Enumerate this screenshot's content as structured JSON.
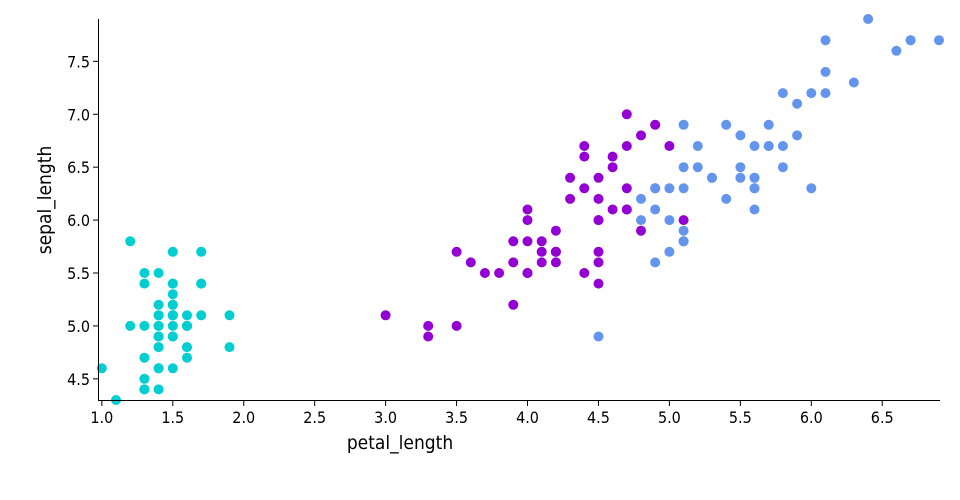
{
  "chart_data": {
    "type": "scatter",
    "xlabel": "petal_length",
    "ylabel": "sepal_length",
    "xlim": [
      0.98,
      6.9
    ],
    "ylim": [
      4.3,
      7.9
    ],
    "x_ticks": [
      "1.0",
      "1.5",
      "2.0",
      "2.5",
      "3.0",
      "3.5",
      "4.0",
      "4.5",
      "5.0",
      "5.5",
      "6.0",
      "6.5"
    ],
    "y_ticks": [
      "4.5",
      "5.0",
      "5.5",
      "6.0",
      "6.5",
      "7.0",
      "7.5"
    ],
    "grid": false,
    "series": [
      {
        "color": "#00CED1",
        "points": [
          [
            1.4,
            5.1
          ],
          [
            1.4,
            4.9
          ],
          [
            1.3,
            4.7
          ],
          [
            1.5,
            4.6
          ],
          [
            1.4,
            5.0
          ],
          [
            1.7,
            5.4
          ],
          [
            1.4,
            4.6
          ],
          [
            1.5,
            5.0
          ],
          [
            1.4,
            4.4
          ],
          [
            1.5,
            4.9
          ],
          [
            1.5,
            5.4
          ],
          [
            1.6,
            4.8
          ],
          [
            1.4,
            4.8
          ],
          [
            1.1,
            4.3
          ],
          [
            1.2,
            5.8
          ],
          [
            1.5,
            5.7
          ],
          [
            1.3,
            5.4
          ],
          [
            1.4,
            5.1
          ],
          [
            1.7,
            5.7
          ],
          [
            1.5,
            5.1
          ],
          [
            1.7,
            5.4
          ],
          [
            1.5,
            5.1
          ],
          [
            1.0,
            4.6
          ],
          [
            1.7,
            5.1
          ],
          [
            1.9,
            4.8
          ],
          [
            1.6,
            5.0
          ],
          [
            1.6,
            5.0
          ],
          [
            1.5,
            5.2
          ],
          [
            1.4,
            5.2
          ],
          [
            1.6,
            4.7
          ],
          [
            1.6,
            4.8
          ],
          [
            1.5,
            5.4
          ],
          [
            1.5,
            5.2
          ],
          [
            1.4,
            5.5
          ],
          [
            1.5,
            4.9
          ],
          [
            1.2,
            5.0
          ],
          [
            1.3,
            5.5
          ],
          [
            1.4,
            4.9
          ],
          [
            1.3,
            4.4
          ],
          [
            1.5,
            5.1
          ],
          [
            1.3,
            5.0
          ],
          [
            1.3,
            4.5
          ],
          [
            1.3,
            4.4
          ],
          [
            1.6,
            5.0
          ],
          [
            1.9,
            5.1
          ],
          [
            1.4,
            4.8
          ],
          [
            1.6,
            5.1
          ],
          [
            1.4,
            4.6
          ],
          [
            1.5,
            5.3
          ],
          [
            1.4,
            5.0
          ]
        ]
      },
      {
        "color": "#9400D3",
        "points": [
          [
            4.7,
            7.0
          ],
          [
            4.5,
            6.4
          ],
          [
            4.9,
            6.9
          ],
          [
            4.0,
            5.5
          ],
          [
            4.6,
            6.5
          ],
          [
            4.5,
            5.7
          ],
          [
            4.7,
            6.3
          ],
          [
            3.3,
            4.9
          ],
          [
            4.6,
            6.6
          ],
          [
            3.9,
            5.2
          ],
          [
            3.5,
            5.0
          ],
          [
            4.2,
            5.9
          ],
          [
            4.0,
            6.0
          ],
          [
            4.7,
            6.1
          ],
          [
            3.6,
            5.6
          ],
          [
            4.4,
            6.7
          ],
          [
            4.5,
            5.6
          ],
          [
            4.1,
            5.8
          ],
          [
            4.5,
            6.2
          ],
          [
            3.9,
            5.6
          ],
          [
            4.8,
            5.9
          ],
          [
            4.0,
            6.1
          ],
          [
            4.9,
            6.3
          ],
          [
            4.7,
            6.1
          ],
          [
            4.3,
            6.4
          ],
          [
            4.4,
            6.6
          ],
          [
            4.8,
            6.8
          ],
          [
            5.0,
            6.7
          ],
          [
            4.5,
            6.0
          ],
          [
            3.5,
            5.7
          ],
          [
            3.8,
            5.5
          ],
          [
            3.7,
            5.5
          ],
          [
            3.9,
            5.8
          ],
          [
            5.1,
            6.0
          ],
          [
            4.5,
            5.4
          ],
          [
            4.5,
            6.0
          ],
          [
            4.7,
            6.7
          ],
          [
            4.4,
            6.3
          ],
          [
            4.1,
            5.6
          ],
          [
            4.0,
            5.5
          ],
          [
            4.4,
            5.5
          ],
          [
            4.6,
            6.1
          ],
          [
            4.0,
            5.8
          ],
          [
            3.3,
            5.0
          ],
          [
            4.2,
            5.6
          ],
          [
            4.2,
            5.7
          ],
          [
            4.2,
            5.7
          ],
          [
            4.3,
            6.2
          ],
          [
            3.0,
            5.1
          ],
          [
            4.1,
            5.7
          ]
        ]
      },
      {
        "color": "#6495ED",
        "points": [
          [
            6.0,
            6.3
          ],
          [
            5.1,
            5.8
          ],
          [
            5.9,
            7.1
          ],
          [
            5.6,
            6.3
          ],
          [
            5.8,
            6.5
          ],
          [
            6.6,
            7.6
          ],
          [
            4.5,
            4.9
          ],
          [
            6.3,
            7.3
          ],
          [
            5.8,
            6.7
          ],
          [
            6.1,
            7.2
          ],
          [
            5.1,
            6.5
          ],
          [
            5.3,
            6.4
          ],
          [
            5.5,
            6.8
          ],
          [
            5.0,
            5.7
          ],
          [
            5.1,
            5.8
          ],
          [
            5.3,
            6.4
          ],
          [
            5.5,
            6.5
          ],
          [
            6.7,
            7.7
          ],
          [
            6.9,
            7.7
          ],
          [
            5.0,
            6.0
          ],
          [
            5.7,
            6.9
          ],
          [
            4.9,
            5.6
          ],
          [
            6.7,
            7.7
          ],
          [
            4.9,
            6.3
          ],
          [
            5.7,
            6.7
          ],
          [
            6.0,
            7.2
          ],
          [
            4.8,
            6.2
          ],
          [
            4.9,
            6.1
          ],
          [
            5.6,
            6.4
          ],
          [
            5.8,
            7.2
          ],
          [
            6.1,
            7.4
          ],
          [
            6.4,
            7.9
          ],
          [
            5.6,
            6.4
          ],
          [
            5.1,
            6.3
          ],
          [
            5.6,
            6.1
          ],
          [
            6.1,
            7.7
          ],
          [
            5.6,
            6.3
          ],
          [
            5.5,
            6.4
          ],
          [
            4.8,
            6.0
          ],
          [
            5.4,
            6.9
          ],
          [
            5.6,
            6.7
          ],
          [
            5.1,
            6.9
          ],
          [
            5.1,
            5.8
          ],
          [
            5.9,
            6.8
          ],
          [
            5.7,
            6.7
          ],
          [
            5.2,
            6.7
          ],
          [
            5.0,
            6.3
          ],
          [
            5.2,
            6.5
          ],
          [
            5.4,
            6.2
          ],
          [
            5.1,
            5.9
          ]
        ]
      }
    ]
  }
}
